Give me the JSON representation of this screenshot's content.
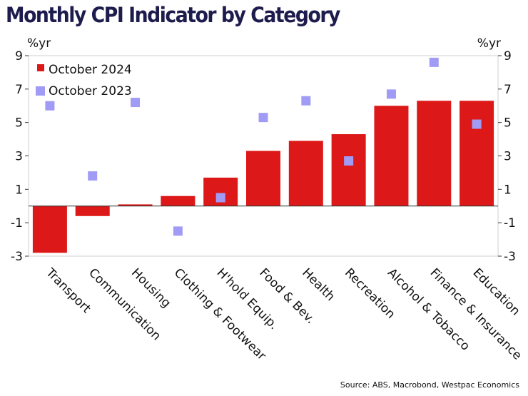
{
  "chart_data": {
    "type": "bar",
    "title": "Monthly CPI Indicator by Category",
    "ylabel_left": "%yr",
    "ylabel_right": "%yr",
    "ylim": [
      -3,
      9
    ],
    "yticks": [
      -3,
      -1,
      1,
      3,
      5,
      7,
      9
    ],
    "grid": false,
    "legend_position": "top-left",
    "categories": [
      "Transport",
      "Communication",
      "Housing",
      "Clothing & Footwear",
      "H'hold Equip.",
      "Food & Bev.",
      "Health",
      "Recreation",
      "Alcohol & Tobacco",
      "Finance & Insurance",
      "Education"
    ],
    "series": [
      {
        "name": "October 2024",
        "render": "bar",
        "color": "#dd1818",
        "values": [
          -2.8,
          -0.6,
          0.1,
          0.6,
          1.7,
          3.3,
          3.9,
          4.3,
          6.0,
          6.3,
          6.3
        ]
      },
      {
        "name": "October 2023",
        "render": "marker",
        "color": "#a09cf6",
        "values": [
          6.0,
          1.8,
          6.2,
          -1.5,
          0.5,
          5.3,
          6.3,
          2.7,
          6.7,
          8.6,
          4.9
        ]
      }
    ],
    "source": "Source: ABS, Macrobond, Westpac Economics"
  }
}
